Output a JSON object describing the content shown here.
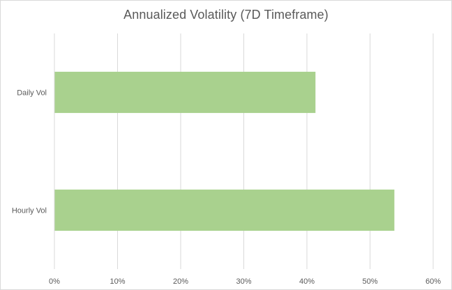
{
  "chart_data": {
    "type": "bar",
    "orientation": "horizontal",
    "title": "Annualized Volatility (7D Timeframe)",
    "categories": [
      "Daily Vol",
      "Hourly Vol"
    ],
    "values": [
      0.413,
      0.538
    ],
    "value_format": "percent",
    "xlim": [
      0,
      0.6
    ],
    "xticks": [
      0,
      0.1,
      0.2,
      0.3,
      0.4,
      0.5,
      0.6
    ],
    "xtick_labels": [
      "0%",
      "10%",
      "20%",
      "30%",
      "40%",
      "50%",
      "60%"
    ],
    "xlabel": "",
    "ylabel": "",
    "grid": true,
    "legend": "none",
    "colors": {
      "bar": "#a9d18e",
      "grid": "#d9d9d9",
      "text": "#595959"
    }
  }
}
